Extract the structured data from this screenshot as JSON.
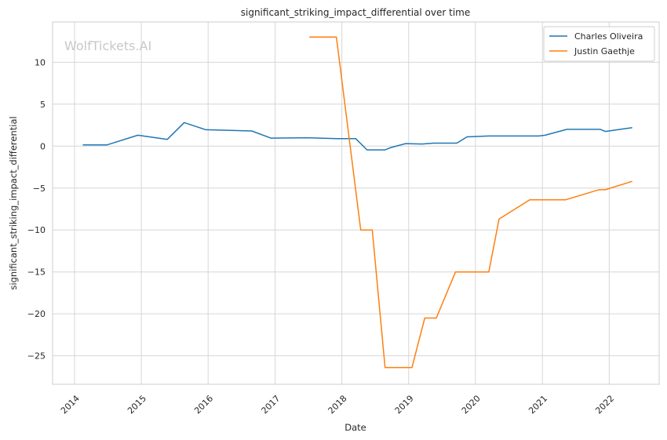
{
  "chart_data": {
    "type": "line",
    "title": "significant_striking_impact_differential over time",
    "xlabel": "Date",
    "ylabel": "significant_striking_impact_differential",
    "watermark": "WolfTickets.AI",
    "xlim": [
      "2013-09-03",
      "2022-10-01"
    ],
    "ylim": [
      -28.4,
      14.8
    ],
    "x_ticks": [
      "2014",
      "2015",
      "2016",
      "2017",
      "2018",
      "2019",
      "2020",
      "2021",
      "2022"
    ],
    "y_ticks": [
      -25,
      -20,
      -15,
      -10,
      -5,
      0,
      5,
      10
    ],
    "y_tick_labels": [
      "−25",
      "−20",
      "−15",
      "−10",
      "−5",
      "0",
      "5",
      "10"
    ],
    "grid": true,
    "legend_position": "top-right",
    "series": [
      {
        "name": "Charles Oliveira",
        "color": "#1f77b4",
        "points": [
          [
            "2014-02-15",
            0.15
          ],
          [
            "2014-06-28",
            0.15
          ],
          [
            "2014-12-13",
            1.3
          ],
          [
            "2015-05-23",
            0.8
          ],
          [
            "2015-08-23",
            2.8
          ],
          [
            "2015-12-19",
            1.95
          ],
          [
            "2016-08-27",
            1.8
          ],
          [
            "2016-12-09",
            0.95
          ],
          [
            "2017-06-24",
            1.0
          ],
          [
            "2017-12-02",
            0.9
          ],
          [
            "2018-03-17",
            0.9
          ],
          [
            "2018-05-19",
            -0.45
          ],
          [
            "2018-08-25",
            -0.45
          ],
          [
            "2018-09-22",
            -0.2
          ],
          [
            "2018-12-15",
            0.3
          ],
          [
            "2019-03-16",
            0.25
          ],
          [
            "2019-05-18",
            0.35
          ],
          [
            "2019-09-21",
            0.35
          ],
          [
            "2019-11-16",
            1.1
          ],
          [
            "2020-03-14",
            1.2
          ],
          [
            "2020-12-12",
            1.2
          ],
          [
            "2021-01-16",
            1.3
          ],
          [
            "2021-05-15",
            2.0
          ],
          [
            "2021-11-13",
            2.0
          ],
          [
            "2021-12-11",
            1.75
          ],
          [
            "2022-05-07",
            2.2
          ]
        ]
      },
      {
        "name": "Justin Gaethje",
        "color": "#ff7f0e",
        "points": [
          [
            "2017-07-07",
            13.0
          ],
          [
            "2017-12-02",
            13.0
          ],
          [
            "2018-04-14",
            -10.0
          ],
          [
            "2018-06-16",
            -10.0
          ],
          [
            "2018-08-25",
            -26.4
          ],
          [
            "2019-01-19",
            -26.4
          ],
          [
            "2019-03-30",
            -20.5
          ],
          [
            "2019-06-01",
            -20.5
          ],
          [
            "2019-09-14",
            -15.0
          ],
          [
            "2020-03-14",
            -15.0
          ],
          [
            "2020-05-09",
            -8.7
          ],
          [
            "2020-10-24",
            -6.4
          ],
          [
            "2021-05-08",
            -6.4
          ],
          [
            "2021-11-06",
            -5.2
          ],
          [
            "2021-12-11",
            -5.2
          ],
          [
            "2022-05-07",
            -4.2
          ]
        ]
      }
    ]
  }
}
